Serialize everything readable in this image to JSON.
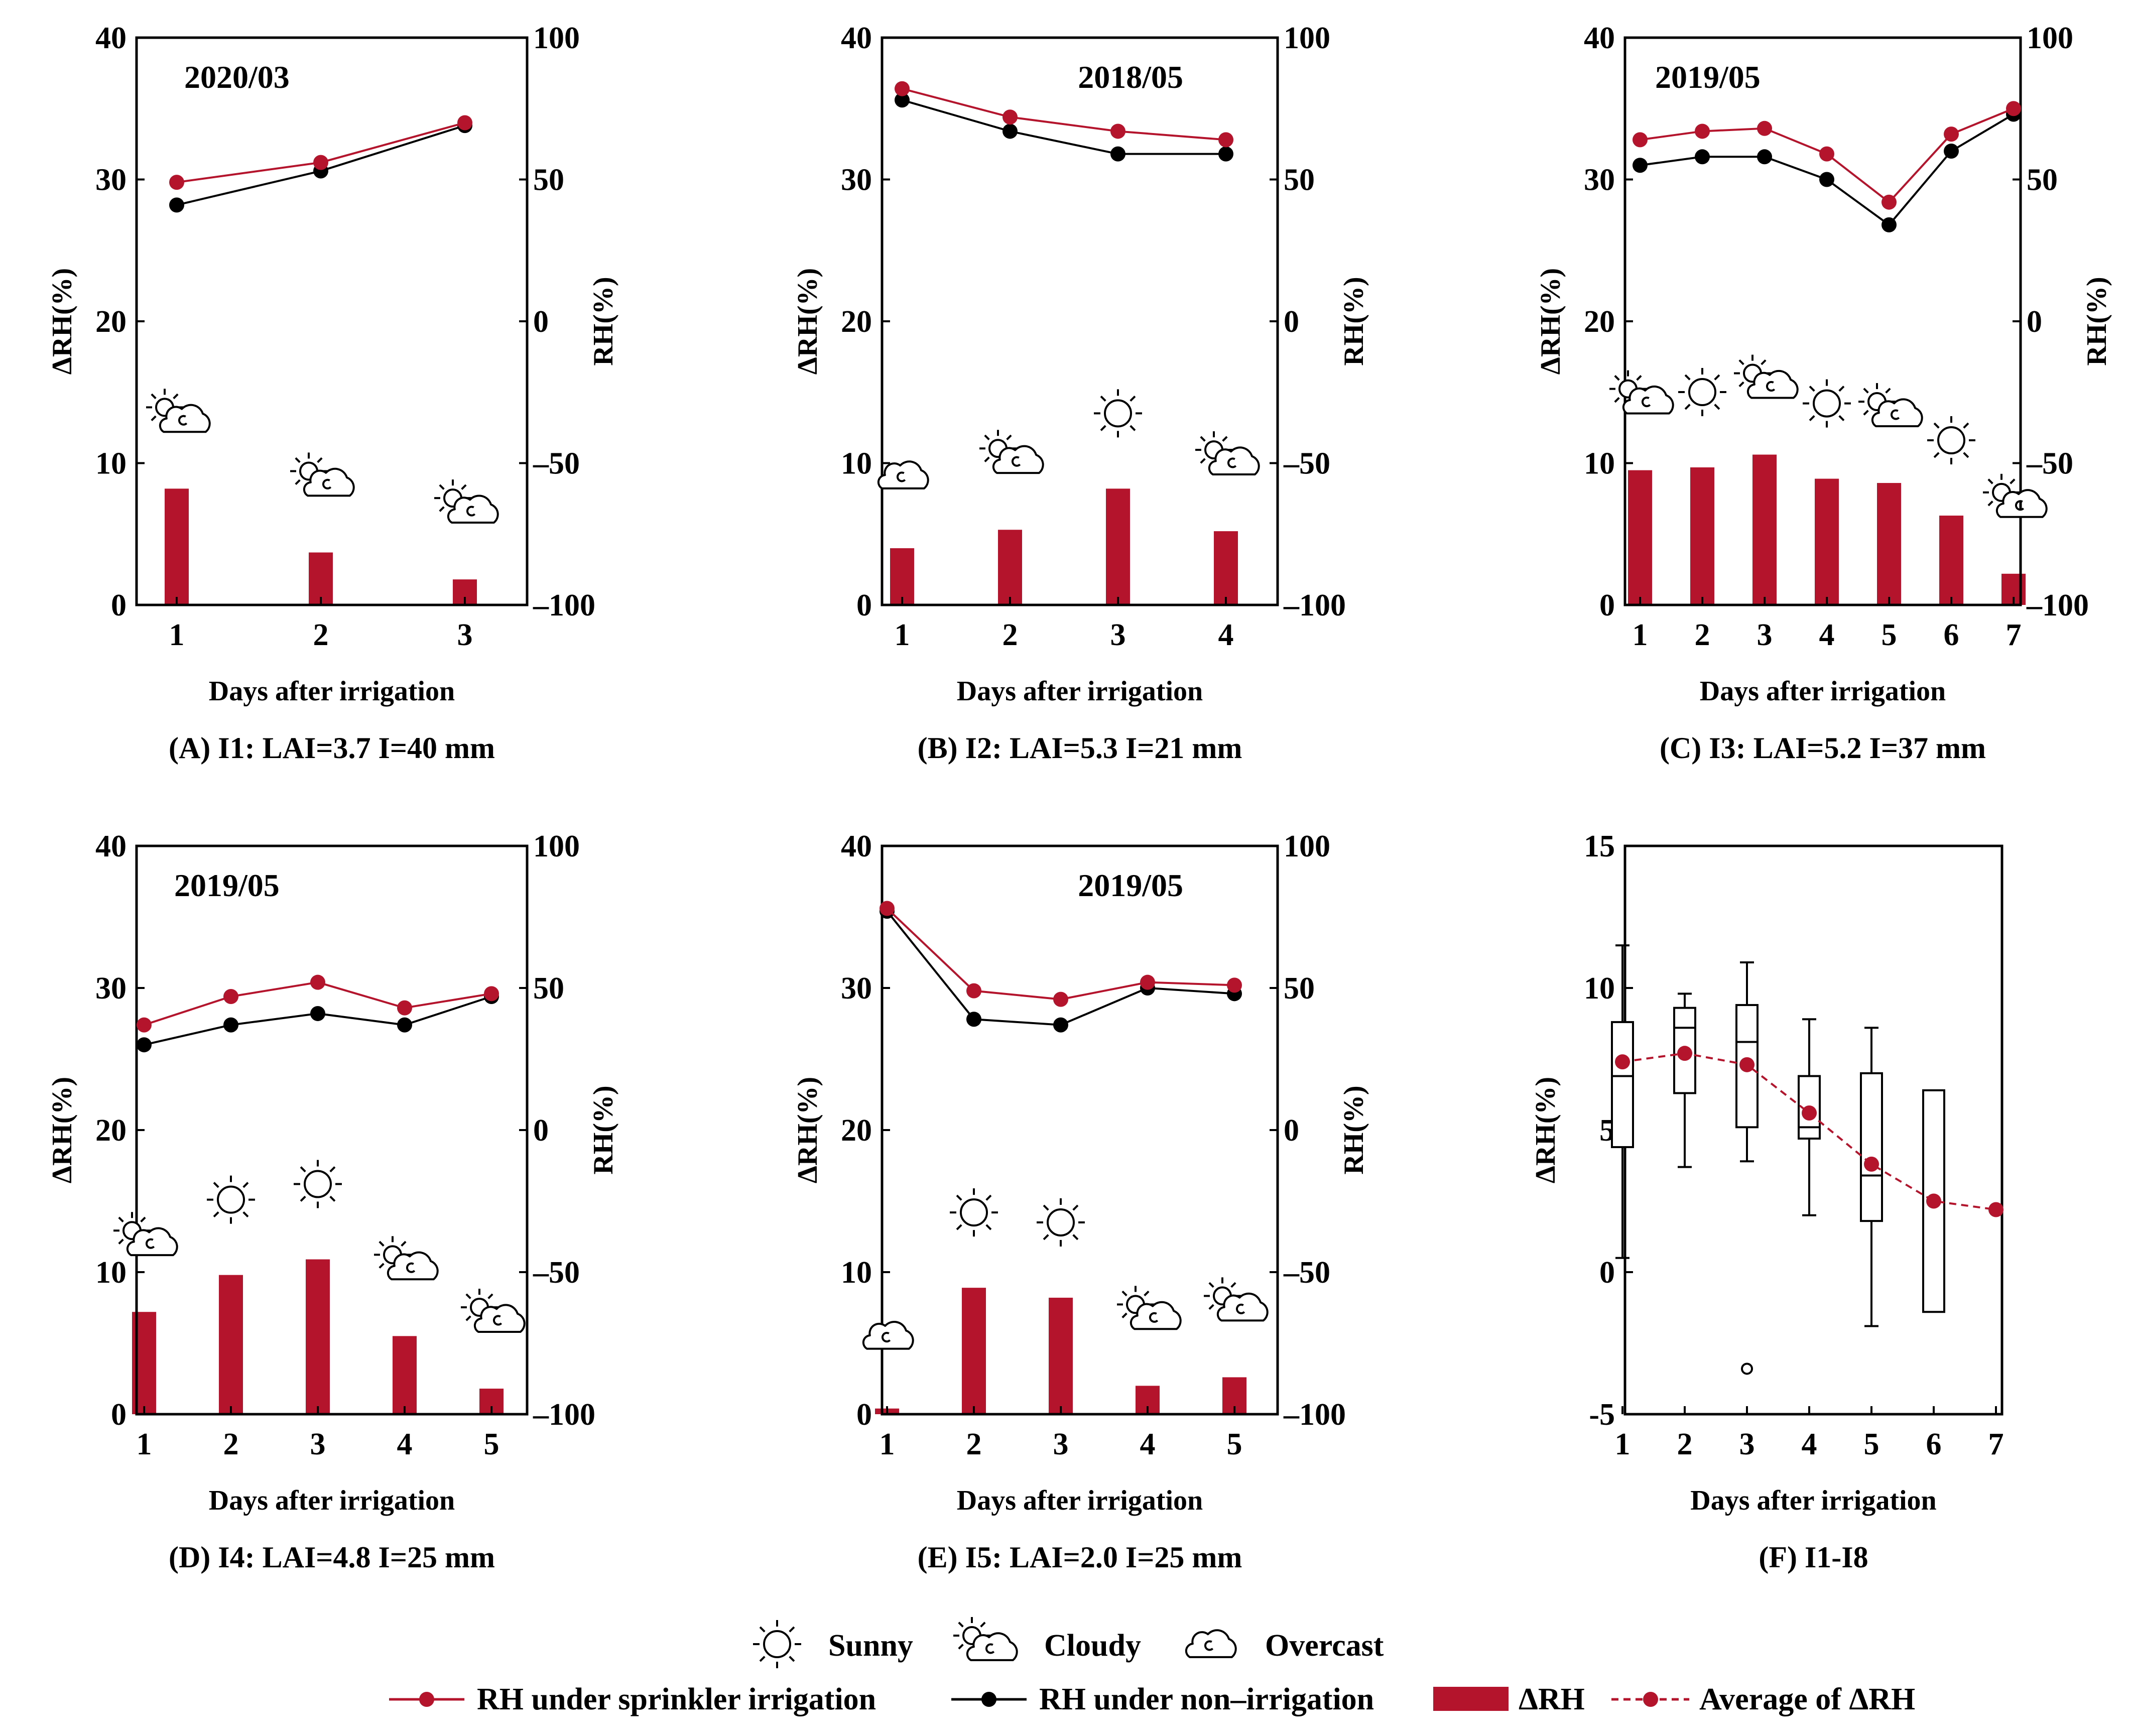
{
  "colors": {
    "sprinkler": "#b5142d",
    "non": "#000000",
    "bar": "#b5142d"
  },
  "legend": {
    "sunny": "Sunny",
    "cloudy": "Cloudy",
    "overcast": "Overcast",
    "rh_sprinkler": "RH under sprinkler irrigation",
    "rh_non": "RH under non–irrigation",
    "delta_rh": "ΔRH",
    "avg_delta": "Average of ΔRH"
  },
  "chart_data": [
    {
      "type": "bar+line",
      "caption": "(A) I1: LAI=3.7  I=40 mm",
      "date": "2020/03",
      "xlabel": "Days after irrigation",
      "ylabel_left": "ΔRH(%)",
      "ylabel_right": "RH(%)",
      "x": [
        1,
        2,
        3
      ],
      "delta_rh": [
        8.2,
        3.7,
        1.8
      ],
      "rh_sprinkler": [
        49,
        56,
        70
      ],
      "rh_non": [
        41,
        53,
        69
      ],
      "weather": [
        "cloudy",
        "cloudy",
        "cloudy"
      ],
      "yleft": [
        0,
        40
      ],
      "yleft_ticks": [
        0,
        10,
        20,
        30,
        40
      ],
      "yright": [
        -100,
        100
      ],
      "yright_ticks": [
        "–100",
        "–50",
        "0",
        "50",
        "100"
      ]
    },
    {
      "type": "bar+line",
      "caption": "(B) I2: LAI=5.3  I=21 mm",
      "date": "2018/05",
      "xlabel": "Days after irrigation",
      "ylabel_left": "ΔRH(%)",
      "ylabel_right": "RH(%)",
      "x": [
        1,
        2,
        3,
        4
      ],
      "delta_rh": [
        4.0,
        5.3,
        8.2,
        5.2
      ],
      "rh_sprinkler": [
        82,
        72,
        67,
        64
      ],
      "rh_non": [
        78,
        67,
        59,
        59
      ],
      "weather": [
        "overcast",
        "cloudy",
        "sunny",
        "cloudy"
      ],
      "yleft": [
        0,
        40
      ],
      "yleft_ticks": [
        0,
        10,
        20,
        30,
        40
      ],
      "yright": [
        -100,
        100
      ],
      "yright_ticks": [
        "–100",
        "–50",
        "0",
        "50",
        "100"
      ]
    },
    {
      "type": "bar+line",
      "caption": "(C) I3: LAI=5.2  I=37 mm",
      "date": "2019/05",
      "xlabel": "Days after irrigation",
      "ylabel_left": "ΔRH(%)",
      "ylabel_right": "RH(%)",
      "x": [
        1,
        2,
        3,
        4,
        5,
        6,
        7
      ],
      "delta_rh": [
        9.5,
        9.7,
        10.6,
        8.9,
        8.6,
        6.3,
        2.2
      ],
      "rh_sprinkler": [
        64,
        67,
        68,
        59,
        42,
        66,
        75
      ],
      "rh_non": [
        55,
        58,
        58,
        50,
        34,
        60,
        73
      ],
      "weather": [
        "cloudy",
        "sunny",
        "cloudy",
        "sunny",
        "cloudy",
        "sunny",
        "cloudy"
      ],
      "yleft": [
        0,
        40
      ],
      "yleft_ticks": [
        0,
        10,
        20,
        30,
        40
      ],
      "yright": [
        -100,
        100
      ],
      "yright_ticks": [
        "–100",
        "–50",
        "0",
        "50",
        "100"
      ]
    },
    {
      "type": "bar+line",
      "caption": "(D) I4: LAI=4.8  I=25 mm",
      "date": "2019/05",
      "xlabel": "Days after irrigation",
      "ylabel_left": "ΔRH(%)",
      "ylabel_right": "RH(%)",
      "x": [
        1,
        2,
        3,
        4,
        5
      ],
      "delta_rh": [
        7.2,
        9.8,
        10.9,
        5.5,
        1.8
      ],
      "rh_sprinkler": [
        37,
        47,
        52,
        43,
        48
      ],
      "rh_non": [
        30,
        37,
        41,
        37,
        47
      ],
      "weather": [
        "cloudy",
        "sunny",
        "sunny",
        "cloudy",
        "cloudy"
      ],
      "yleft": [
        0,
        40
      ],
      "yleft_ticks": [
        0,
        10,
        20,
        30,
        40
      ],
      "yright": [
        -100,
        100
      ],
      "yright_ticks": [
        "–100",
        "–50",
        "0",
        "50",
        "100"
      ]
    },
    {
      "type": "bar+line",
      "caption": "(E) I5: LAI=2.0  I=25 mm",
      "date": "2019/05",
      "xlabel": "Days after irrigation",
      "ylabel_left": "ΔRH(%)",
      "ylabel_right": "RH(%)",
      "x": [
        1,
        2,
        3,
        4,
        5
      ],
      "delta_rh": [
        0.4,
        8.9,
        8.2,
        2.0,
        2.6
      ],
      "rh_sprinkler": [
        78,
        49,
        46,
        52,
        51
      ],
      "rh_non": [
        77,
        39,
        37,
        50,
        48
      ],
      "weather": [
        "overcast",
        "sunny",
        "sunny",
        "cloudy",
        "cloudy"
      ],
      "yleft": [
        0,
        40
      ],
      "yleft_ticks": [
        0,
        10,
        20,
        30,
        40
      ],
      "yright": [
        -100,
        100
      ],
      "yright_ticks": [
        "–100",
        "–50",
        "0",
        "50",
        "100"
      ]
    },
    {
      "type": "box",
      "caption": "(F) I1-I8",
      "xlabel": "Days after irrigation",
      "ylabel": "ΔRH(%)",
      "ylim": [
        -5,
        15
      ],
      "yticks": [
        -5,
        0,
        5,
        10,
        15
      ],
      "x": [
        1,
        2,
        3,
        4,
        5,
        6,
        7
      ],
      "boxes": [
        {
          "day": 1,
          "whisker_low": 0.5,
          "q1": 4.4,
          "median": 6.9,
          "q3": 8.8,
          "whisker_high": 11.5
        },
        {
          "day": 2,
          "whisker_low": 3.7,
          "q1": 6.3,
          "median": 8.6,
          "q3": 9.3,
          "whisker_high": 9.8
        },
        {
          "day": 3,
          "whisker_low": 3.9,
          "q1": 5.1,
          "median": 8.1,
          "q3": 9.4,
          "whisker_high": 10.9,
          "outliers": [
            -3.4
          ]
        },
        {
          "day": 4,
          "whisker_low": 2.0,
          "q1": 4.7,
          "median": 5.1,
          "q3": 6.9,
          "whisker_high": 8.9
        },
        {
          "day": 5,
          "whisker_low": -1.9,
          "q1": 1.8,
          "median": 3.4,
          "q3": 7.0,
          "whisker_high": 8.6
        },
        {
          "day": 6,
          "q1": -1.4,
          "q3": 6.4
        }
      ],
      "average_delta_rh": [
        7.4,
        7.7,
        7.3,
        5.6,
        3.8,
        2.5,
        2.2
      ]
    }
  ]
}
